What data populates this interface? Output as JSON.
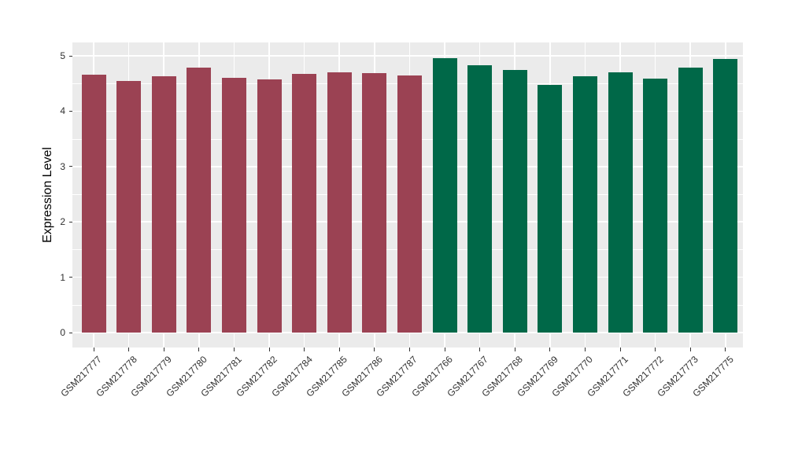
{
  "chart_data": {
    "type": "bar",
    "title": "",
    "xlabel": "",
    "ylabel": "Expression Level",
    "ylim": [
      0,
      5
    ],
    "yticks": [
      0,
      1,
      2,
      3,
      4,
      5
    ],
    "minor_yticks": [
      0.5,
      1.5,
      2.5,
      3.5,
      4.5
    ],
    "grid": "on",
    "legend": "none",
    "categories": [
      "GSM217777",
      "GSM217778",
      "GSM217779",
      "GSM217780",
      "GSM217781",
      "GSM217782",
      "GSM217784",
      "GSM217785",
      "GSM217786",
      "GSM217787",
      "GSM217766",
      "GSM217767",
      "GSM217768",
      "GSM217769",
      "GSM217770",
      "GSM217771",
      "GSM217772",
      "GSM217773",
      "GSM217775"
    ],
    "values": [
      4.66,
      4.55,
      4.63,
      4.79,
      4.6,
      4.58,
      4.68,
      4.7,
      4.69,
      4.64,
      4.96,
      4.83,
      4.74,
      4.47,
      4.63,
      4.7,
      4.59,
      4.79,
      4.94
    ],
    "groups": [
      "group1",
      "group1",
      "group1",
      "group1",
      "group1",
      "group1",
      "group1",
      "group1",
      "group1",
      "group1",
      "group2",
      "group2",
      "group2",
      "group2",
      "group2",
      "group2",
      "group2",
      "group2",
      "group2"
    ],
    "group_colors": {
      "group1": "#9B4253",
      "group2": "#006848"
    }
  },
  "colors": {
    "figure_background": "#FFFFFF",
    "panel_background": "#EBEBEB",
    "gridline": "#FFFFFF",
    "tick_mark": "#333333",
    "axis_text": "#303030",
    "axis_title": "#000000"
  }
}
